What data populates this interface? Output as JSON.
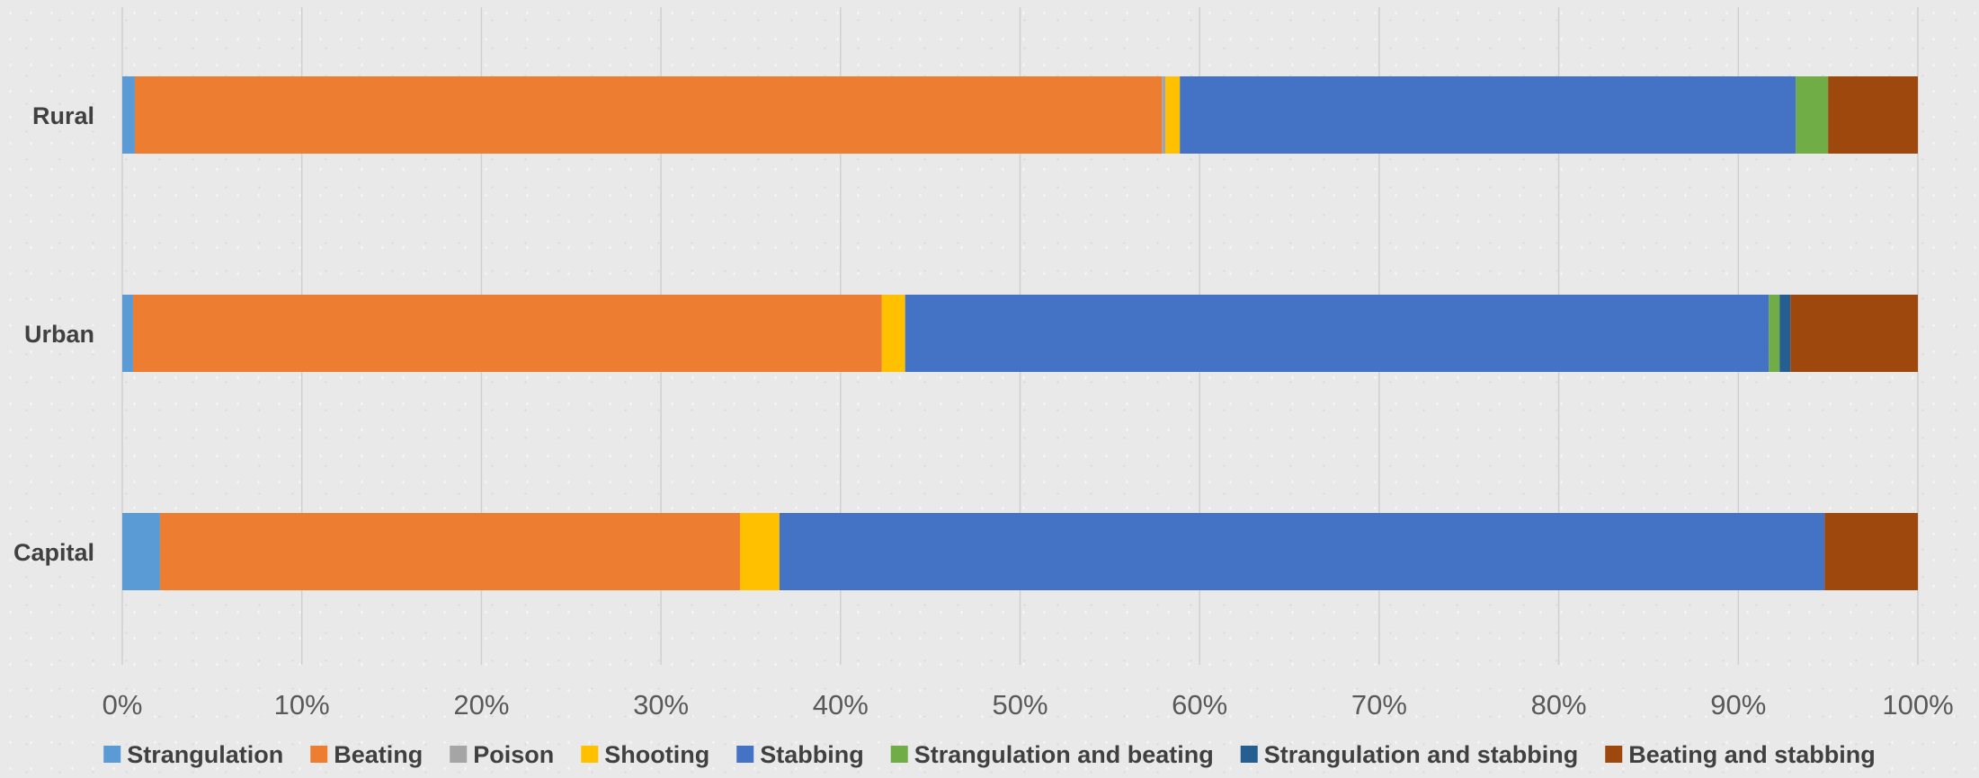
{
  "chart_data": {
    "type": "bar",
    "orientation": "horizontal",
    "stacked": "percent",
    "title": "",
    "xlabel": "",
    "ylabel": "",
    "xlim": [
      0,
      100
    ],
    "x_ticks": [
      "0%",
      "10%",
      "20%",
      "30%",
      "40%",
      "50%",
      "60%",
      "70%",
      "80%",
      "90%",
      "100%"
    ],
    "grid": "vertical",
    "legend_position": "bottom",
    "categories": [
      "Rural",
      "Urban",
      "Capital"
    ],
    "series": [
      {
        "name": "Strangulation",
        "color": "#5b9bd5",
        "values": [
          0.7,
          0.6,
          2.1
        ]
      },
      {
        "name": "Beating",
        "color": "#ed7d31",
        "values": [
          57.2,
          41.7,
          32.3
        ]
      },
      {
        "name": "Poison",
        "color": "#a5a5a5",
        "values": [
          0.2,
          0.0,
          0.0
        ]
      },
      {
        "name": "Shooting",
        "color": "#ffc000",
        "values": [
          0.8,
          1.3,
          2.2
        ]
      },
      {
        "name": "Stabbing",
        "color": "#4472c4",
        "values": [
          34.3,
          48.1,
          58.2
        ]
      },
      {
        "name": "Strangulation and beating",
        "color": "#70ad47",
        "values": [
          1.8,
          0.6,
          0.0
        ]
      },
      {
        "name": "Strangulation and stabbing",
        "color": "#255e91",
        "values": [
          0.0,
          0.6,
          0.0
        ]
      },
      {
        "name": "Beating and stabbing",
        "color": "#9e480e",
        "values": [
          5.0,
          7.1,
          5.2
        ]
      }
    ]
  }
}
